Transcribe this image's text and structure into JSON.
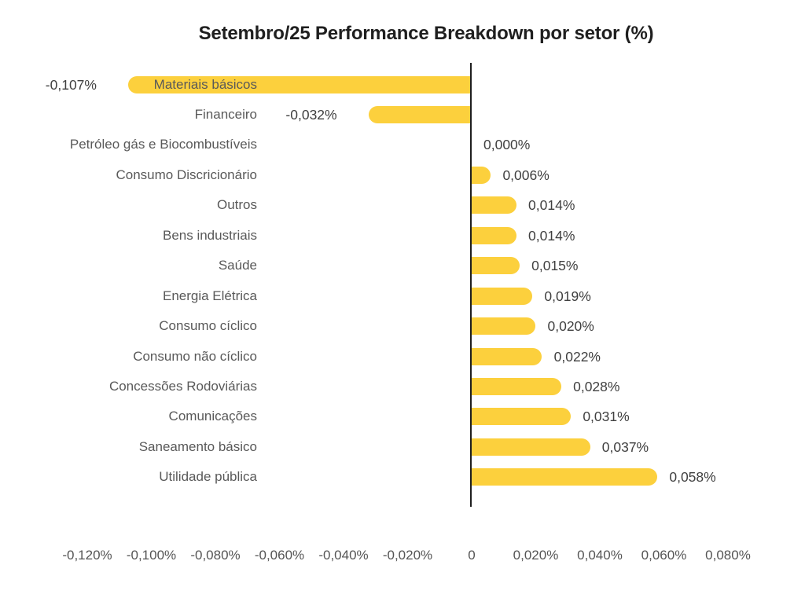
{
  "title": "Setembro/25 Performance Breakdown por setor (%)",
  "chart_data": {
    "type": "bar",
    "orientation": "horizontal",
    "unit": "%",
    "decimal_separator": ",",
    "title": "Setembro/25 Performance Breakdown por setor (%)",
    "categories": [
      "Materiais básicos",
      "Financeiro",
      "Petróleo gás e Biocombustíveis",
      "Consumo Discricionário",
      "Outros",
      "Bens industriais",
      "Saúde",
      "Energia Elétrica",
      "Consumo cíclico",
      "Consumo não cíclico",
      "Concessões Rodoviárias",
      "Comunicações",
      "Saneamento básico",
      "Utilidade pública"
    ],
    "values": [
      -0.107,
      -0.032,
      0.0,
      0.006,
      0.014,
      0.014,
      0.015,
      0.019,
      0.02,
      0.022,
      0.028,
      0.031,
      0.037,
      0.058
    ],
    "value_labels": [
      "-0,107%",
      "-0,032%",
      "0,000%",
      "0,006%",
      "0,014%",
      "0,014%",
      "0,015%",
      "0,019%",
      "0,020%",
      "0,022%",
      "0,028%",
      "0,031%",
      "0,037%",
      "0,058%"
    ],
    "x_ticks": [
      {
        "label": "-0,120%",
        "value": -0.12
      },
      {
        "label": "-0,100%",
        "value": -0.1
      },
      {
        "label": "-0,080%",
        "value": -0.08
      },
      {
        "label": "-0,060%",
        "value": -0.06
      },
      {
        "label": "-0,040%",
        "value": -0.04
      },
      {
        "label": "-0,020%",
        "value": -0.02
      },
      {
        "label": "0",
        "value": 0
      },
      {
        "label": "0,020%",
        "value": 0.02
      },
      {
        "label": "0,040%",
        "value": 0.04
      },
      {
        "label": "0,060%",
        "value": 0.06
      },
      {
        "label": "0,080%",
        "value": 0.08
      }
    ],
    "xlim": [
      -0.12,
      0.08
    ],
    "grid": false,
    "legend": null,
    "bar_color": "#FCD03D",
    "axis_line_color": "#1f1f1f",
    "label_color": "#595959",
    "value_color": "#404040",
    "tick_color": "#555555"
  }
}
